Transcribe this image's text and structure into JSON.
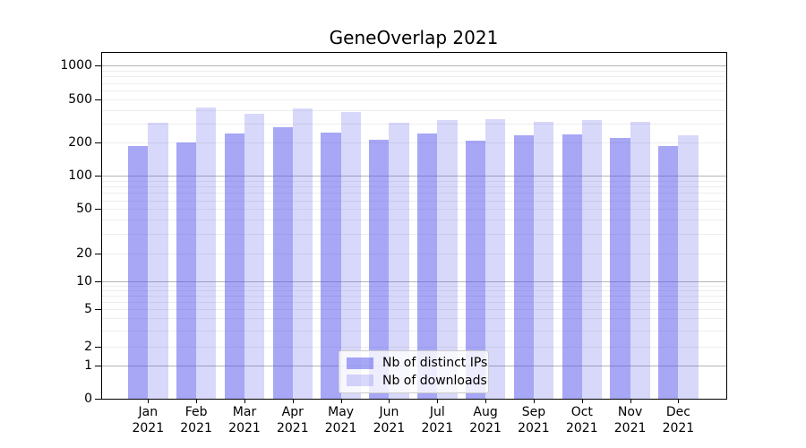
{
  "title": "GeneOverlap 2021",
  "chart_data": {
    "type": "bar",
    "title": "GeneOverlap 2021",
    "categories": [
      "Jan 2021",
      "Feb 2021",
      "Mar 2021",
      "Apr 2021",
      "May 2021",
      "Jun 2021",
      "Jul 2021",
      "Aug 2021",
      "Sep 2021",
      "Oct 2021",
      "Nov 2021",
      "Dec 2021"
    ],
    "series": [
      {
        "name": "Nb of distinct IPs",
        "color": "rgba(79,79,237,0.5)",
        "values": [
          185,
          200,
          242,
          275,
          250,
          213,
          243,
          210,
          232,
          238,
          220,
          187
        ]
      },
      {
        "name": "Nb of downloads",
        "color": "rgba(79,79,237,0.22)",
        "values": [
          306,
          420,
          365,
          410,
          382,
          303,
          320,
          330,
          310,
          322,
          310,
          232
        ]
      }
    ],
    "xlabel": "",
    "ylabel": "",
    "yscale": "symlog",
    "y_ticks": [
      0,
      1,
      2,
      5,
      10,
      20,
      50,
      100,
      200,
      500,
      1000
    ],
    "ylim": [
      0,
      1300
    ],
    "grid": "on",
    "grid_major_at": [
      1,
      10,
      100,
      1000
    ],
    "legend_position": "lower center"
  },
  "colors": {
    "background": "#ffffff",
    "spine": "#000000",
    "grid_minor": "#ededed",
    "grid_major": "#b5b5b5",
    "legend_border": "#cccccc"
  }
}
